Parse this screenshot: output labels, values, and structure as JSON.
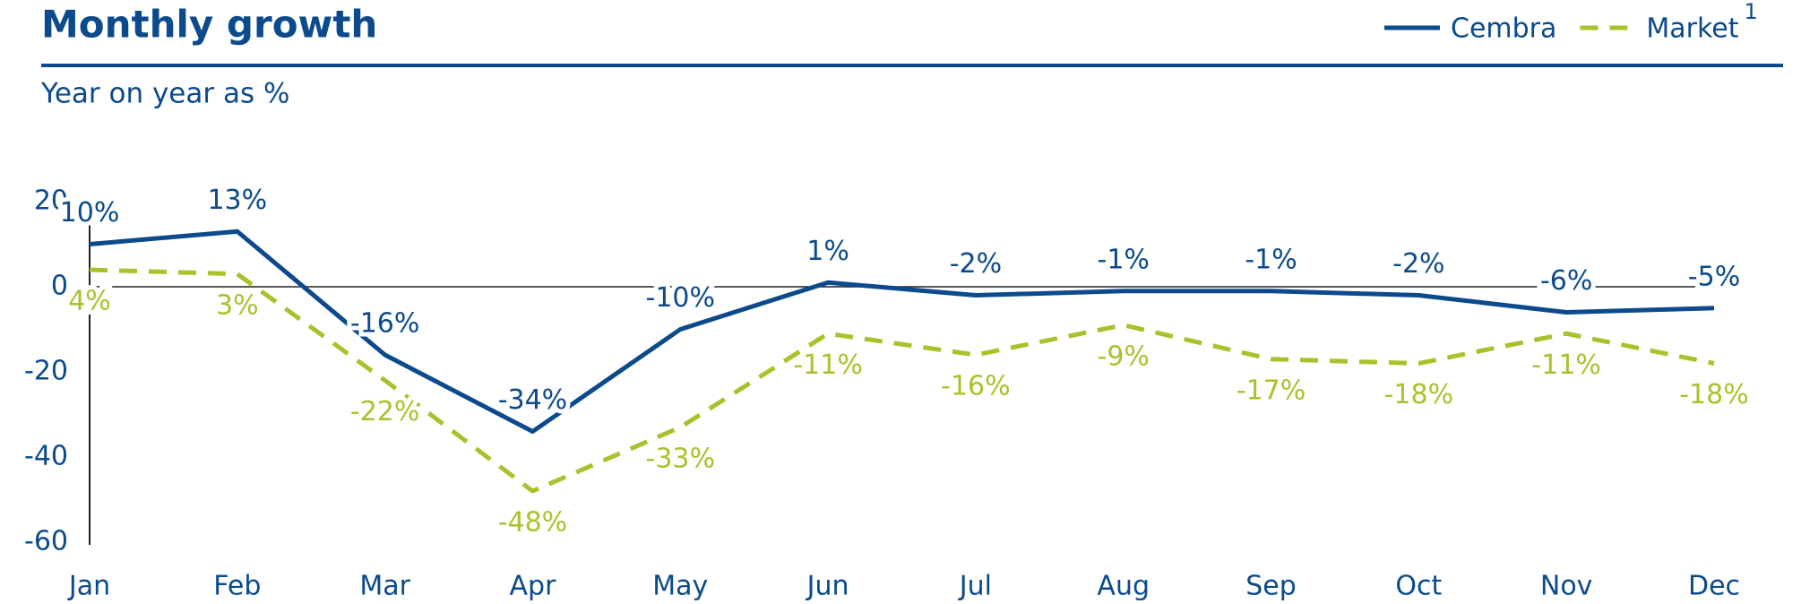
{
  "chart_data": {
    "type": "line",
    "title": "Monthly growth",
    "subtitle": "Year on year as %",
    "legend_footnote": "1",
    "categories": [
      "Jan",
      "Feb",
      "Mar",
      "Apr",
      "May",
      "Jun",
      "Jul",
      "Aug",
      "Sep",
      "Oct",
      "Nov",
      "Dec"
    ],
    "series": [
      {
        "name": "Cembra",
        "color": "#0b4a8b",
        "dashed": false,
        "values": [
          10,
          13,
          -16,
          -34,
          -10,
          1,
          -2,
          -1,
          -1,
          -2,
          -6,
          -5
        ],
        "value_labels": [
          "10%",
          "13%",
          "-16%",
          "-34%",
          "-10%",
          "1%",
          "-2%",
          "-1%",
          "-1%",
          "-2%",
          "-6%",
          "-5%"
        ]
      },
      {
        "name": "Market",
        "color": "#a9c22b",
        "dashed": true,
        "values": [
          4,
          3,
          -22,
          -48,
          -33,
          -11,
          -16,
          -9,
          -17,
          -18,
          -11,
          -18
        ],
        "value_labels": [
          "4%",
          "3%",
          "-22%",
          "-48%",
          "-33%",
          "-11%",
          "-16%",
          "-9%",
          "-17%",
          "-18%",
          "-11%",
          "-18%"
        ]
      }
    ],
    "ylim": [
      -60,
      20
    ],
    "yticks": [
      20,
      0,
      -20,
      -40,
      -60
    ],
    "grid": false
  }
}
